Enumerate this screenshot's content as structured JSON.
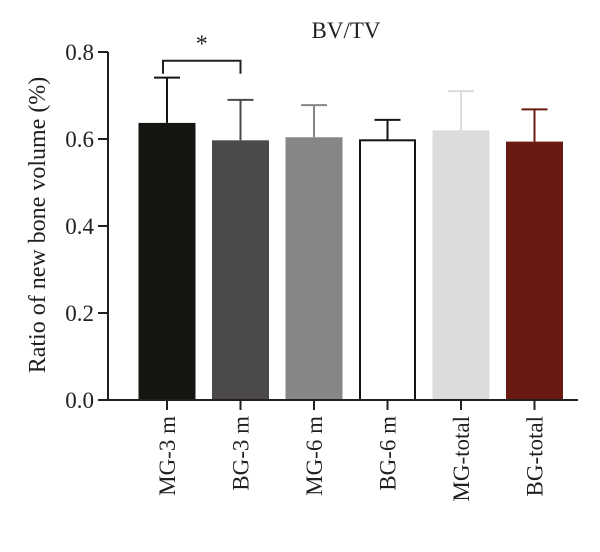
{
  "chart_data": {
    "type": "bar",
    "title": "BV/TV",
    "ylabel": "Ratio of new bone volume (%)",
    "xlabel": "",
    "ylim": [
      0,
      0.8
    ],
    "yticks": [
      "0.0",
      "0.2",
      "0.4",
      "0.6",
      "0.8"
    ],
    "ytick_values": [
      0,
      0.2,
      0.4,
      0.6,
      0.8
    ],
    "categories": [
      "MG-3 m",
      "BG-3 m",
      "MG-6 m",
      "BG-6 m",
      "MG-total",
      "BG-total"
    ],
    "values": [
      0.637,
      0.597,
      0.604,
      0.597,
      0.62,
      0.594
    ],
    "errors": [
      0.104,
      0.093,
      0.074,
      0.047,
      0.09,
      0.074
    ],
    "bar_colors": [
      "#141410",
      "#4b4a49",
      "#868686",
      "#ffffff",
      "#dcdcdc",
      "#6a1a10"
    ],
    "error_colors": [
      "#141410",
      "#4b4a49",
      "#868686",
      "#141410",
      "#dcdcdc",
      "#6a1a10"
    ],
    "grid": false,
    "significance": [
      {
        "from": "MG-3 m",
        "to": "BG-3 m",
        "label": "*",
        "y": 0.78
      }
    ]
  }
}
